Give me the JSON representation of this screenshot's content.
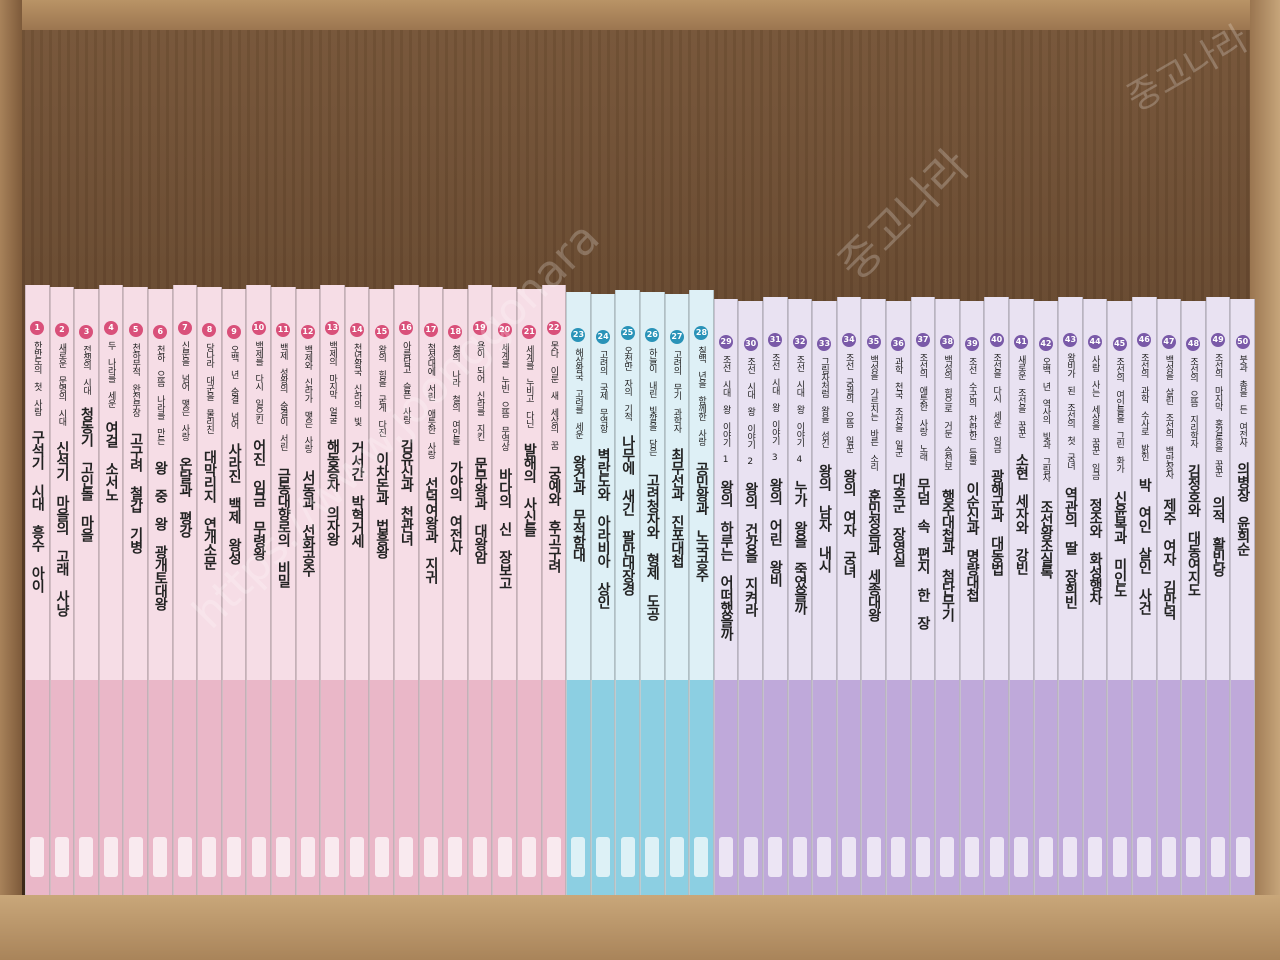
{
  "watermark": {
    "url": "https://www.joonggonara",
    "brand": "중고나라",
    "corner_brand": "중고나라"
  },
  "books": [
    {
      "number": 1,
      "subtitle": "한반도의 첫 사람",
      "title": "구석기 시대 흥수 아이"
    },
    {
      "number": 2,
      "subtitle": "새로운 문명의 시대",
      "title": "신석기 마을의 고래 사냥"
    },
    {
      "number": 3,
      "subtitle": "전쟁의 시대",
      "title": "청동기 고인돌 마을"
    },
    {
      "number": 4,
      "subtitle": "두 나라를 세운",
      "title": "여걸 소서노"
    },
    {
      "number": 5,
      "subtitle": "천하무적 완전무장",
      "title": "고구려 철갑 기병"
    },
    {
      "number": 6,
      "subtitle": "천하 으뜸 나라를 만든",
      "title": "왕 중 왕 광개토대왕"
    },
    {
      "number": 7,
      "subtitle": "신분을 넘어 맺은 사랑",
      "title": "온달과 평강"
    },
    {
      "number": 8,
      "subtitle": "당나라 대군을 물리친",
      "title": "대막리지 연개소문"
    },
    {
      "number": 9,
      "subtitle": "오백 년 숨결 넘어",
      "title": "사라진 백제 왕성"
    },
    {
      "number": 10,
      "subtitle": "백제를 다시 일으킨",
      "title": "어진 임금 무령왕"
    },
    {
      "number": 11,
      "subtitle": "백제 성왕의 숨결이 서린",
      "title": "금동대향로의 비밀"
    },
    {
      "number": 12,
      "subtitle": "백제와 신라가 맺은 사랑",
      "title": "서동과 선화공주"
    },
    {
      "number": 13,
      "subtitle": "백제의 마지막 얼굴",
      "title": "해동증자 의자왕"
    },
    {
      "number": 14,
      "subtitle": "천년왕국 신라의 빛",
      "title": "거서간 박혁거세"
    },
    {
      "number": 15,
      "subtitle": "왕의 힘을 굳게 다진",
      "title": "이차돈과 법흥왕"
    },
    {
      "number": 16,
      "subtitle": "아름답고 슬픈 사랑",
      "title": "김유신과 천관녀"
    },
    {
      "number": 17,
      "subtitle": "첨성대에 서린 애틋한 사랑",
      "title": "선덕여왕과 지귀"
    },
    {
      "number": 18,
      "subtitle": "철의 나라 철의 여인들",
      "title": "가야의 여전사"
    },
    {
      "number": 19,
      "subtitle": "용이 되어 신라를 지킨",
      "title": "문무왕과 대왕암"
    },
    {
      "number": 20,
      "subtitle": "세계를 누빈 으뜸 무역상",
      "title": "바다의 신 장보고"
    },
    {
      "number": 21,
      "subtitle": "세계를 누비고 다닌",
      "title": "발해의 사신들"
    },
    {
      "number": 22,
      "subtitle": "못다 이룬 새 세상의 꿈",
      "title": "궁예와 후고구려"
    },
    {
      "number": 23,
      "subtitle": "해상왕국 고려를 세운",
      "title": "왕건과 무적함대"
    },
    {
      "number": 24,
      "subtitle": "고려의 국제 무역항",
      "title": "벽란도와 아라비아 상인"
    },
    {
      "number": 25,
      "subtitle": "오천만 자의 기적",
      "title": "나무에 새긴 팔만대장경"
    },
    {
      "number": 26,
      "subtitle": "하늘이 내린 빛깔을 담은",
      "title": "고려청자와 형제 도공"
    },
    {
      "number": 27,
      "subtitle": "고려의 무기 과학자",
      "title": "최무선과 진포대첩"
    },
    {
      "number": 28,
      "subtitle": "칠백 년을 함께한 사랑",
      "title": "공민왕과 노국공주"
    },
    {
      "number": 29,
      "subtitle": "조선 시대 왕 이야기 1",
      "title": "왕의 하루는 어떠했을까"
    },
    {
      "number": 30,
      "subtitle": "조선 시대 왕 이야기 2",
      "title": "왕의 건강을 지켜라"
    },
    {
      "number": 31,
      "subtitle": "조선 시대 왕 이야기 3",
      "title": "왕의 어린 왕비"
    },
    {
      "number": 32,
      "subtitle": "조선 시대 왕 이야기 4",
      "title": "누가 왕을 죽였을까"
    },
    {
      "number": 33,
      "subtitle": "그림자처럼 왕을 섬긴",
      "title": "왕의 남자 내시"
    },
    {
      "number": 34,
      "subtitle": "조선 궁궐의 으뜸 일꾼",
      "title": "왕의 여자 궁녀"
    },
    {
      "number": 35,
      "subtitle": "백성을 가르치는 바른 소리",
      "title": "훈민정음과 세종대왕"
    },
    {
      "number": 36,
      "subtitle": "과학 천국 조선을 일군",
      "title": "대호군 장영실"
    },
    {
      "number": 37,
      "subtitle": "조선의 애틋한 사랑 노래",
      "title": "무덤 속 편지 한 장"
    },
    {
      "number": 38,
      "subtitle": "백성의 힘으로 거둔 승전보",
      "title": "행주대첩과 첨단무기"
    },
    {
      "number": 39,
      "subtitle": "조선 수군의 찬란한 등불",
      "title": "이순신과 명량대첩"
    },
    {
      "number": 40,
      "subtitle": "조선을 다시 세운 임금",
      "title": "광해군과 대동법"
    },
    {
      "number": 41,
      "subtitle": "새로운 조선을 꿈꾼",
      "title": "소현 세자와 강빈"
    },
    {
      "number": 42,
      "subtitle": "오백 년 역사의 빛과 그림자",
      "title": "조선왕조실록"
    },
    {
      "number": 43,
      "subtitle": "왕비가 된 조선의 첫 궁녀",
      "title": "역관의 딸 장희빈"
    },
    {
      "number": 44,
      "subtitle": "사람 사는 세상을 꿈꾼 임금",
      "title": "정조와 화성행차"
    },
    {
      "number": 45,
      "subtitle": "조선의 여인들을 그린 화가",
      "title": "신윤복과 미인도"
    },
    {
      "number": 46,
      "subtitle": "조선의 과학 수사로 밝힌",
      "title": "박 여인 살인 사건"
    },
    {
      "number": 47,
      "subtitle": "백성을 살린 조선의 백만장자",
      "title": "제주 여자 김만덕"
    },
    {
      "number": 48,
      "subtitle": "조선의 으뜸 지리학자",
      "title": "김정호와 대동여지도"
    },
    {
      "number": 49,
      "subtitle": "조선의 마지막 홍길동을 꿈꾼",
      "title": "의적 활빈당"
    },
    {
      "number": 50,
      "subtitle": "붓과 총을 든 여전사",
      "title": "의병장 윤희순"
    }
  ]
}
